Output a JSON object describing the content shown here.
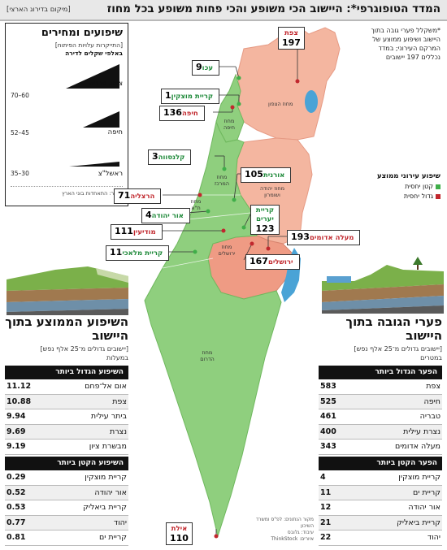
{
  "header": {
    "title": "המדד הטופוגרפי*: היישוב הכי משופע והכי פחות משופע בכל מחוז",
    "subtitle": "[מיקום בדירוג הארצי]"
  },
  "legend": {
    "title": "שיפועים ומחירים",
    "subtitle": "[התייקרות עלויות הפיתוח]",
    "unit": "באלפי שקלים לדירה",
    "items": [
      {
        "place": "צפת, טבריה",
        "range": "70–60"
      },
      {
        "place": "חיפה",
        "range": "52–45"
      },
      {
        "place": "ראשל\"צ",
        "range": "35–30"
      }
    ],
    "source": "מקור: התאחדות בוני הארץ",
    "colors": {
      "frame": "#222222",
      "wedge": "#111111"
    }
  },
  "note": {
    "text": "*משקלל פערי גובה בתוך היישוב ושיפוע ממוצע של המרקם העירוני; במדד נכללים 197 יישובים"
  },
  "map_legend": {
    "title": "שיפוע עירוני ממוצע",
    "items": [
      {
        "label": "קטן יחסית",
        "color": "#3fae49"
      },
      {
        "label": "גדול יחסית",
        "color": "#c1272d"
      }
    ]
  },
  "districts": [
    {
      "name": "מחוז הצפון"
    },
    {
      "name": "מחוז חיפה"
    },
    {
      "name": "מחוז המרכז"
    },
    {
      "name": "מחוז ת\"א"
    },
    {
      "name": "מחוז יהודה ושומרון"
    },
    {
      "name": "מחוז ירושלים"
    },
    {
      "name": "מחוז הדרום"
    }
  ],
  "cities": [
    {
      "name": "צפת",
      "rank": "197",
      "kind": "r"
    },
    {
      "name": "עכו",
      "rank": "9",
      "kind": "g"
    },
    {
      "name": "קריית מוצקין",
      "rank": "1",
      "kind": "g"
    },
    {
      "name": "חיפה",
      "rank": "136",
      "kind": "r"
    },
    {
      "name": "קלנסווה",
      "rank": "3",
      "kind": "g"
    },
    {
      "name": "אורנית",
      "rank": "105",
      "kind": "g"
    },
    {
      "name": "הרצליה",
      "rank": "71",
      "kind": "r"
    },
    {
      "name": "אור יהודה",
      "rank": "4",
      "kind": "g"
    },
    {
      "name": "קריית יערים",
      "rank": "123",
      "kind": "g"
    },
    {
      "name": "מודיעין",
      "rank": "111",
      "kind": "r"
    },
    {
      "name": "מעלה אדומים",
      "rank": "193",
      "kind": "r"
    },
    {
      "name": "קריית מלאכי",
      "rank": "11",
      "kind": "g"
    },
    {
      "name": "ירושלים",
      "rank": "167",
      "kind": "r"
    },
    {
      "name": "אילת",
      "rank": "110",
      "kind": "r"
    }
  ],
  "left_section": {
    "title": "השיפוע הממוצע בתוך היישוב",
    "subtitle": "[יישובים גדולים מ־25 אלף נפש]",
    "unit": "במעלות",
    "high_title": "השיפוע הגדול ביותר",
    "high": [
      {
        "name": "אום אל־פחם",
        "value": "11.12"
      },
      {
        "name": "צפת",
        "value": "10.88"
      },
      {
        "name": "ביתר עילית",
        "value": "9.94"
      },
      {
        "name": "נצרת",
        "value": "9.69"
      },
      {
        "name": "מבשרת ציון",
        "value": "9.19"
      }
    ],
    "low_title": "השיפוע הקטן ביותר",
    "low": [
      {
        "name": "קריית מוצקין",
        "value": "0.29"
      },
      {
        "name": "אור יהודה",
        "value": "0.52"
      },
      {
        "name": "קריית ביאליק",
        "value": "0.53"
      },
      {
        "name": "יהוד",
        "value": "0.77"
      },
      {
        "name": "קריית ים",
        "value": "0.81"
      }
    ]
  },
  "right_section": {
    "title": "פערי הגובה בתוך היישוב",
    "subtitle": "[יישובים גדולים מ־25 אלף נפש]",
    "unit": "במטרים",
    "high_title": "הפער הגדול ביותר",
    "high": [
      {
        "name": "צפת",
        "value": "583"
      },
      {
        "name": "חיפה",
        "value": "525"
      },
      {
        "name": "טבריה",
        "value": "461"
      },
      {
        "name": "נצרת עילית",
        "value": "400"
      },
      {
        "name": "מעלה אדומים",
        "value": "343"
      }
    ],
    "low_title": "הפער הקטן ביותר",
    "low": [
      {
        "name": "קריית מוצקין",
        "value": "4"
      },
      {
        "name": "קריית ים",
        "value": "11"
      },
      {
        "name": "אור יהודה",
        "value": "12"
      },
      {
        "name": "קריית ביאליק",
        "value": "21"
      },
      {
        "name": "יהוד",
        "value": "22"
      }
    ]
  },
  "credits": {
    "source": "מקור הנתונים: לפ\"ס ומשרד השיכון",
    "design": "עיבוד: גלובס",
    "photos": "איורים: ThinkStock"
  },
  "colors": {
    "green": "#8fcf7e",
    "green_dark": "#3fae49",
    "pink": "#f4b6a0",
    "pink_dark": "#ef9b84",
    "red": "#c1272d",
    "water": "#4aa3d6"
  }
}
